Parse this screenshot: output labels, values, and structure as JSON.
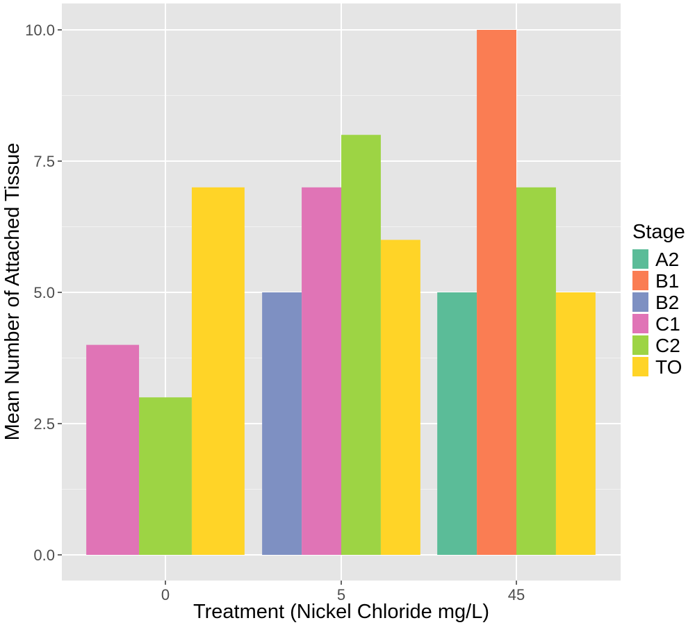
{
  "chart_data": {
    "type": "bar",
    "title": "",
    "xlabel": "Treatment (Nickel Chloride mg/L)",
    "ylabel": "Mean Number of Attached Tissue",
    "categories": [
      "0",
      "5",
      "45"
    ],
    "ylim": [
      0,
      10.5
    ],
    "yticks": [
      "0.0",
      "2.5",
      "5.0",
      "7.5",
      "10.0"
    ],
    "grid": true,
    "legend_position": "right",
    "legend_title": "Stage",
    "series": [
      {
        "name": "A2",
        "color": "#5BBC98",
        "values": [
          null,
          null,
          5
        ]
      },
      {
        "name": "B1",
        "color": "#FA7D53",
        "values": [
          null,
          null,
          10
        ]
      },
      {
        "name": "B2",
        "color": "#7E90C2",
        "values": [
          null,
          5,
          null
        ]
      },
      {
        "name": "C1",
        "color": "#E074B6",
        "values": [
          4,
          7,
          null
        ]
      },
      {
        "name": "C2",
        "color": "#9DD444",
        "values": [
          3,
          8,
          7
        ]
      },
      {
        "name": "TO",
        "color": "#FFD427",
        "values": [
          7,
          6,
          5
        ]
      }
    ]
  }
}
